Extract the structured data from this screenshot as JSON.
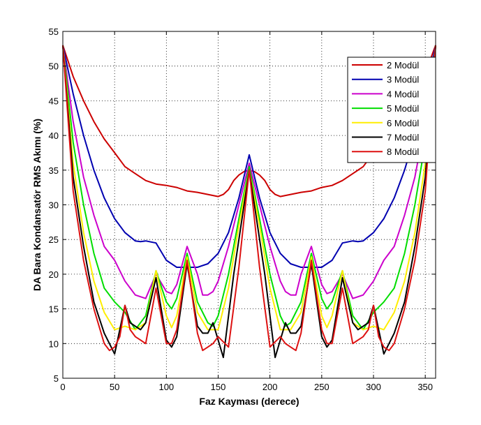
{
  "chart_data": {
    "type": "line",
    "title": "",
    "xlabel": "Faz Kayması (derece)",
    "ylabel": "DA Bara Kondansatör RMS Akımı (%)",
    "xlim": [
      0,
      360
    ],
    "ylim": [
      5,
      55
    ],
    "xticks": [
      0,
      50,
      100,
      150,
      200,
      250,
      300,
      350
    ],
    "yticks": [
      5,
      10,
      15,
      20,
      25,
      30,
      35,
      40,
      45,
      50,
      55
    ],
    "grid": true,
    "legend_position": "top-right",
    "series": [
      {
        "name": "2 Modül",
        "color": "#cc0000",
        "points": [
          [
            0,
            53
          ],
          [
            10,
            48.5
          ],
          [
            20,
            45
          ],
          [
            30,
            42
          ],
          [
            40,
            39.5
          ],
          [
            50,
            37.5
          ],
          [
            60,
            35.5
          ],
          [
            70,
            34.5
          ],
          [
            80,
            33.5
          ],
          [
            90,
            33
          ],
          [
            100,
            32.8
          ],
          [
            110,
            32.5
          ],
          [
            120,
            32
          ],
          [
            130,
            31.8
          ],
          [
            140,
            31.5
          ],
          [
            150,
            31.2
          ],
          [
            155,
            31.5
          ],
          [
            160,
            32.2
          ],
          [
            165,
            33.5
          ],
          [
            170,
            34.3
          ],
          [
            175,
            34.8
          ],
          [
            180,
            35
          ],
          [
            185,
            34.8
          ],
          [
            190,
            34.3
          ],
          [
            195,
            33.5
          ],
          [
            200,
            32.2
          ],
          [
            205,
            31.5
          ],
          [
            210,
            31.2
          ],
          [
            220,
            31.5
          ],
          [
            230,
            31.8
          ],
          [
            240,
            32
          ],
          [
            250,
            32.5
          ],
          [
            260,
            32.8
          ],
          [
            270,
            33.5
          ],
          [
            280,
            34.5
          ],
          [
            290,
            35.5
          ],
          [
            300,
            37.5
          ],
          [
            310,
            39.5
          ],
          [
            320,
            42
          ],
          [
            330,
            44
          ],
          [
            340,
            46.5
          ],
          [
            350,
            49
          ],
          [
            360,
            53
          ]
        ]
      },
      {
        "name": "3 Modül",
        "color": "#0000b0",
        "points": [
          [
            0,
            53
          ],
          [
            10,
            46
          ],
          [
            20,
            40
          ],
          [
            30,
            35
          ],
          [
            40,
            31
          ],
          [
            50,
            28
          ],
          [
            60,
            26
          ],
          [
            70,
            24.8
          ],
          [
            75,
            24.7
          ],
          [
            80,
            24.8
          ],
          [
            90,
            24.5
          ],
          [
            100,
            22
          ],
          [
            110,
            21
          ],
          [
            120,
            21
          ],
          [
            130,
            21
          ],
          [
            140,
            21.5
          ],
          [
            150,
            23
          ],
          [
            160,
            26
          ],
          [
            170,
            31
          ],
          [
            180,
            37.2
          ],
          [
            190,
            31
          ],
          [
            200,
            26
          ],
          [
            210,
            23
          ],
          [
            220,
            21.5
          ],
          [
            230,
            21
          ],
          [
            240,
            21
          ],
          [
            250,
            21
          ],
          [
            260,
            22
          ],
          [
            270,
            24.5
          ],
          [
            280,
            24.8
          ],
          [
            285,
            24.7
          ],
          [
            290,
            24.8
          ],
          [
            300,
            26
          ],
          [
            310,
            28
          ],
          [
            320,
            31
          ],
          [
            330,
            35
          ],
          [
            340,
            40
          ],
          [
            350,
            46
          ],
          [
            360,
            53
          ]
        ]
      },
      {
        "name": "4 Modül",
        "color": "#cc00cc",
        "points": [
          [
            0,
            53
          ],
          [
            10,
            42
          ],
          [
            20,
            34
          ],
          [
            30,
            28.5
          ],
          [
            40,
            24
          ],
          [
            50,
            22
          ],
          [
            60,
            19
          ],
          [
            70,
            17
          ],
          [
            80,
            16.5
          ],
          [
            90,
            20
          ],
          [
            100,
            17.5
          ],
          [
            105,
            17.2
          ],
          [
            110,
            18.5
          ],
          [
            120,
            24
          ],
          [
            130,
            20
          ],
          [
            135,
            17
          ],
          [
            140,
            17
          ],
          [
            145,
            17.5
          ],
          [
            150,
            19
          ],
          [
            160,
            24
          ],
          [
            170,
            30
          ],
          [
            180,
            36
          ],
          [
            190,
            30
          ],
          [
            200,
            24
          ],
          [
            210,
            19
          ],
          [
            215,
            17.5
          ],
          [
            220,
            17
          ],
          [
            225,
            17
          ],
          [
            230,
            20
          ],
          [
            240,
            24
          ],
          [
            250,
            18.5
          ],
          [
            255,
            17.2
          ],
          [
            260,
            17.5
          ],
          [
            270,
            20
          ],
          [
            280,
            16.5
          ],
          [
            290,
            17
          ],
          [
            300,
            19
          ],
          [
            310,
            22
          ],
          [
            320,
            24
          ],
          [
            330,
            28.5
          ],
          [
            340,
            34
          ],
          [
            350,
            42
          ],
          [
            360,
            53
          ]
        ]
      },
      {
        "name": "5 Modül",
        "color": "#00dd00",
        "points": [
          [
            0,
            53
          ],
          [
            10,
            39
          ],
          [
            20,
            30
          ],
          [
            30,
            23
          ],
          [
            40,
            18
          ],
          [
            50,
            16
          ],
          [
            60,
            14.5
          ],
          [
            70,
            12
          ],
          [
            80,
            14
          ],
          [
            90,
            20.5
          ],
          [
            100,
            16
          ],
          [
            105,
            15
          ],
          [
            110,
            16.5
          ],
          [
            120,
            23
          ],
          [
            130,
            16
          ],
          [
            140,
            13
          ],
          [
            145,
            12.5
          ],
          [
            150,
            14
          ],
          [
            160,
            20
          ],
          [
            170,
            28
          ],
          [
            180,
            35.5
          ],
          [
            190,
            28
          ],
          [
            200,
            20
          ],
          [
            210,
            14
          ],
          [
            215,
            12.5
          ],
          [
            220,
            13
          ],
          [
            230,
            16
          ],
          [
            240,
            23
          ],
          [
            250,
            16.5
          ],
          [
            255,
            15
          ],
          [
            260,
            16
          ],
          [
            270,
            20.5
          ],
          [
            280,
            14
          ],
          [
            290,
            12
          ],
          [
            300,
            14.5
          ],
          [
            310,
            16
          ],
          [
            320,
            18
          ],
          [
            330,
            23
          ],
          [
            340,
            30
          ],
          [
            350,
            39
          ],
          [
            360,
            53
          ]
        ]
      },
      {
        "name": "6 Modül",
        "color": "#ffee00",
        "points": [
          [
            0,
            53
          ],
          [
            10,
            36
          ],
          [
            20,
            26
          ],
          [
            30,
            19
          ],
          [
            40,
            14.5
          ],
          [
            50,
            12
          ],
          [
            60,
            12.5
          ],
          [
            70,
            12
          ],
          [
            80,
            13
          ],
          [
            90,
            20.5
          ],
          [
            100,
            14
          ],
          [
            105,
            12.3
          ],
          [
            110,
            14
          ],
          [
            120,
            22.5
          ],
          [
            130,
            14.5
          ],
          [
            140,
            12
          ],
          [
            150,
            12
          ],
          [
            160,
            18
          ],
          [
            170,
            27
          ],
          [
            180,
            35
          ],
          [
            190,
            27
          ],
          [
            200,
            18
          ],
          [
            210,
            12
          ],
          [
            220,
            12
          ],
          [
            230,
            14.5
          ],
          [
            240,
            22.5
          ],
          [
            250,
            14
          ],
          [
            255,
            12.3
          ],
          [
            260,
            14
          ],
          [
            270,
            20.5
          ],
          [
            280,
            13
          ],
          [
            290,
            12
          ],
          [
            300,
            12.5
          ],
          [
            310,
            12
          ],
          [
            320,
            14.5
          ],
          [
            330,
            19
          ],
          [
            340,
            26
          ],
          [
            350,
            36
          ],
          [
            360,
            53
          ]
        ]
      },
      {
        "name": "7 Modül",
        "color": "#000000",
        "points": [
          [
            0,
            53
          ],
          [
            10,
            34
          ],
          [
            20,
            24
          ],
          [
            30,
            16
          ],
          [
            40,
            11.5
          ],
          [
            50,
            8.5
          ],
          [
            60,
            15.5
          ],
          [
            65,
            13
          ],
          [
            70,
            12.5
          ],
          [
            75,
            12
          ],
          [
            80,
            13
          ],
          [
            90,
            19.5
          ],
          [
            100,
            10.5
          ],
          [
            105,
            9.5
          ],
          [
            110,
            11
          ],
          [
            120,
            21.5
          ],
          [
            130,
            12.5
          ],
          [
            135,
            11.5
          ],
          [
            140,
            11.5
          ],
          [
            145,
            13
          ],
          [
            155,
            8
          ],
          [
            165,
            20
          ],
          [
            180,
            35
          ],
          [
            195,
            20
          ],
          [
            205,
            8
          ],
          [
            215,
            13
          ],
          [
            220,
            11.5
          ],
          [
            225,
            11.5
          ],
          [
            230,
            12.5
          ],
          [
            240,
            21.5
          ],
          [
            250,
            11
          ],
          [
            255,
            9.5
          ],
          [
            260,
            10.5
          ],
          [
            270,
            19.5
          ],
          [
            280,
            13
          ],
          [
            285,
            12
          ],
          [
            290,
            12.5
          ],
          [
            295,
            13
          ],
          [
            300,
            15.5
          ],
          [
            310,
            8.5
          ],
          [
            320,
            11.5
          ],
          [
            330,
            16
          ],
          [
            340,
            24
          ],
          [
            350,
            34
          ],
          [
            360,
            53
          ]
        ]
      },
      {
        "name": "8 Modül",
        "color": "#dd1111",
        "points": [
          [
            0,
            53
          ],
          [
            10,
            32
          ],
          [
            20,
            22
          ],
          [
            30,
            15
          ],
          [
            40,
            10
          ],
          [
            45,
            9
          ],
          [
            50,
            9.5
          ],
          [
            55,
            11
          ],
          [
            60,
            15.5
          ],
          [
            65,
            12
          ],
          [
            70,
            11
          ],
          [
            75,
            10.5
          ],
          [
            80,
            10
          ],
          [
            90,
            18
          ],
          [
            100,
            10
          ],
          [
            105,
            10
          ],
          [
            110,
            12
          ],
          [
            120,
            22
          ],
          [
            130,
            11.5
          ],
          [
            135,
            9
          ],
          [
            140,
            9.5
          ],
          [
            145,
            10
          ],
          [
            150,
            11
          ],
          [
            160,
            9.5
          ],
          [
            170,
            21
          ],
          [
            180,
            35
          ],
          [
            190,
            21
          ],
          [
            200,
            9.5
          ],
          [
            210,
            11
          ],
          [
            215,
            10
          ],
          [
            220,
            9.5
          ],
          [
            225,
            9
          ],
          [
            230,
            11.5
          ],
          [
            240,
            22
          ],
          [
            250,
            12
          ],
          [
            255,
            10
          ],
          [
            260,
            10
          ],
          [
            270,
            18
          ],
          [
            280,
            10
          ],
          [
            285,
            10.5
          ],
          [
            290,
            11
          ],
          [
            295,
            12
          ],
          [
            300,
            15.5
          ],
          [
            305,
            11
          ],
          [
            310,
            9.5
          ],
          [
            315,
            9
          ],
          [
            320,
            10
          ],
          [
            330,
            15
          ],
          [
            340,
            22
          ],
          [
            350,
            32
          ],
          [
            360,
            53
          ]
        ]
      }
    ]
  }
}
